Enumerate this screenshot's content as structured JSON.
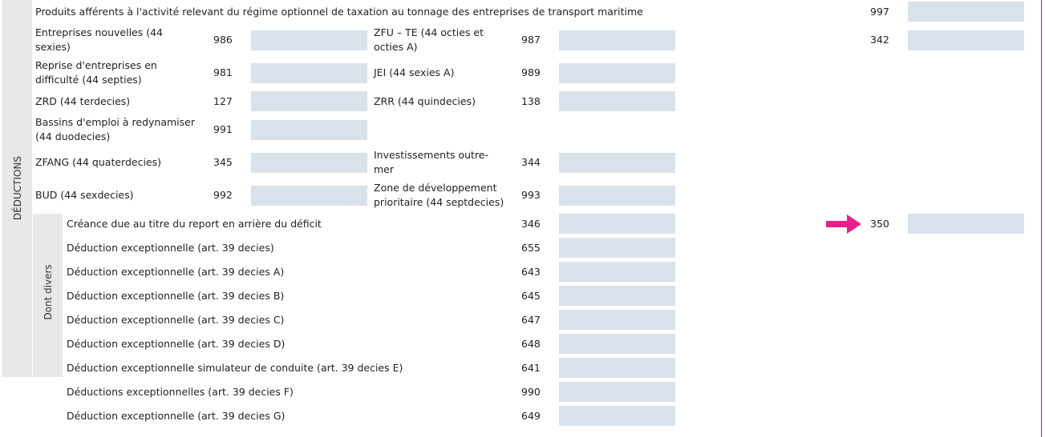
{
  "section_label": "DÉDUCTIONS",
  "sub_section_label": "Dont divers",
  "top_row": {
    "label": "Produits afférents à l'activité relevant du régime optionnel de taxation au tonnage des entreprises de transport maritime",
    "code": "997"
  },
  "row_342_code": "342",
  "grid_rows": [
    {
      "left_label": "Entreprises nouvelles (44 sexies)",
      "left_code": "986",
      "right_label": "ZFU – TE (44 octies et octies A)",
      "right_code": "987"
    },
    {
      "left_label": "Reprise d'entreprises en difficulté (44 septies)",
      "left_code": "981",
      "right_label": "JEI (44 sexies A)",
      "right_code": "989"
    },
    {
      "left_label": "ZRD (44 terdecies)",
      "left_code": "127",
      "right_label": "ZRR (44 quindecies)",
      "right_code": "138"
    },
    {
      "left_label": "Bassins d'emploi à redynamiser (44 duodecies)",
      "left_code": "991",
      "right_label": "",
      "right_code": ""
    },
    {
      "left_label": "ZFANG (44 quaterdecies)",
      "left_code": "345",
      "right_label": "Investissements outre-mer",
      "right_code": "344"
    },
    {
      "left_label": "BUD (44 sexdecies)",
      "left_code": "992",
      "right_label": "Zone de développement prioritaire (44 septdecies)",
      "right_code": "993"
    }
  ],
  "divers_rows": [
    {
      "label": "Créance due au titre du report en arrière du déficit",
      "code": "346"
    },
    {
      "label": "Déduction exceptionnelle (art. 39 decies)",
      "code": "655"
    },
    {
      "label": "Déduction exceptionnelle (art. 39 decies A)",
      "code": "643"
    },
    {
      "label": "Déduction exceptionnelle (art. 39 decies B)",
      "code": "645"
    },
    {
      "label": "Déduction exceptionnelle (art. 39 decies C)",
      "code": "647"
    },
    {
      "label": "Déduction exceptionnelle (art. 39 decies D)",
      "code": "648"
    },
    {
      "label": "Déduction exceptionnelle simulateur de conduite (art. 39 decies E)",
      "code": "641"
    },
    {
      "label": "Déductions exceptionnelles (art. 39 decies F)",
      "code": "990"
    },
    {
      "label": "Déduction exceptionnelle (art. 39 decies G)",
      "code": "649"
    }
  ],
  "total_code": "350",
  "colors": {
    "field_bg": "#d9e2ea",
    "side_bar": "#e8e8e8",
    "arrow": "#e91e8c",
    "right_border": "#c2185b"
  },
  "icons": {
    "arrow": "right-arrow-icon"
  }
}
